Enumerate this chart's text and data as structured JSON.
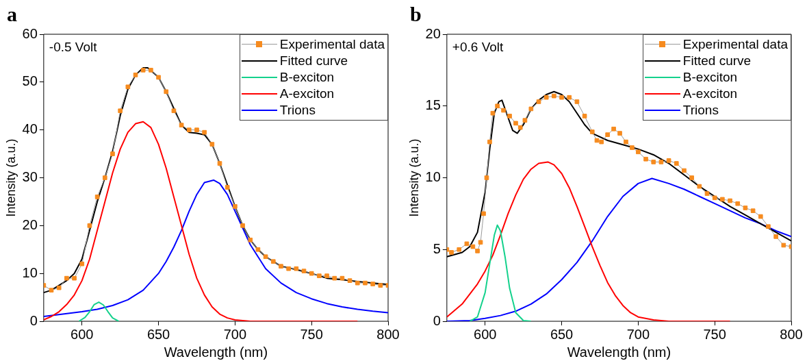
{
  "chart_data": [
    {
      "type": "line",
      "title": "a",
      "xlabel": "Wavelength (nm)",
      "ylabel": "Intensity (a.u.)",
      "annotations": [
        "-0.5 Volt"
      ],
      "xlim": [
        575,
        800
      ],
      "xticks": [
        600,
        650,
        700,
        750,
        800
      ],
      "ylim": [
        0,
        60
      ],
      "yticks": [
        0,
        10,
        20,
        30,
        40,
        50,
        60
      ],
      "grid": false,
      "legend": "top right",
      "series": [
        {
          "name": "Experimental data",
          "color": "#f68b1f",
          "marker": "square",
          "x": [
            575,
            580,
            585,
            590,
            595,
            600,
            605,
            610,
            615,
            620,
            625,
            630,
            635,
            640,
            645,
            650,
            655,
            660,
            665,
            670,
            675,
            680,
            685,
            690,
            695,
            700,
            705,
            710,
            715,
            720,
            725,
            730,
            735,
            740,
            745,
            750,
            755,
            760,
            765,
            770,
            775,
            780,
            785,
            790,
            795,
            800
          ],
          "values": [
            7.5,
            6.5,
            7,
            9,
            9,
            12,
            20,
            26,
            30,
            35,
            44,
            49,
            51.5,
            52.5,
            52.5,
            51,
            48,
            44,
            41,
            40,
            40,
            39.5,
            37,
            33,
            28,
            24,
            20,
            17,
            15,
            13.5,
            12.5,
            11.5,
            11,
            11,
            10.5,
            10,
            9.5,
            9.5,
            9,
            9,
            8.5,
            8,
            8,
            7.8,
            7.5,
            7.5
          ]
        },
        {
          "name": "Fitted curve",
          "color": "#000000",
          "marker": "none",
          "x": [
            575,
            580,
            585,
            590,
            595,
            600,
            605,
            610,
            615,
            620,
            625,
            630,
            635,
            640,
            643,
            650,
            655,
            660,
            665,
            670,
            675,
            680,
            685,
            690,
            695,
            700,
            705,
            710,
            715,
            720,
            725,
            730,
            740,
            750,
            760,
            770,
            780,
            790,
            800
          ],
          "values": [
            6,
            6.5,
            7.5,
            8.5,
            10,
            13,
            19,
            25,
            30,
            35.5,
            43,
            48.5,
            51.5,
            53,
            53,
            51,
            48,
            44.5,
            41,
            39.5,
            39.3,
            39,
            37,
            33,
            28.5,
            24,
            20,
            17,
            15,
            13.5,
            12.5,
            11.5,
            10.8,
            10,
            9,
            8.7,
            8.3,
            8,
            7.7
          ]
        },
        {
          "name": "B-exciton",
          "color": "#14d18c",
          "marker": "none",
          "x": [
            598,
            602,
            605,
            608,
            611,
            614,
            617,
            620,
            624
          ],
          "values": [
            0,
            0.8,
            2,
            3.5,
            4,
            3.4,
            2,
            0.7,
            0
          ]
        },
        {
          "name": "A-exciton",
          "color": "#ff0000",
          "marker": "none",
          "x": [
            575,
            580,
            585,
            590,
            595,
            600,
            605,
            610,
            615,
            620,
            625,
            630,
            635,
            640,
            645,
            650,
            655,
            660,
            665,
            670,
            675,
            680,
            685,
            690,
            695,
            700,
            710,
            780
          ],
          "values": [
            0.3,
            1,
            2,
            3.5,
            5.5,
            8.5,
            13,
            19,
            25,
            31,
            36,
            39.5,
            41.3,
            41.7,
            40.5,
            37,
            32,
            26,
            20,
            14,
            9,
            5.5,
            3,
            1.5,
            0.7,
            0.3,
            0,
            0
          ]
        },
        {
          "name": "Trions",
          "color": "#0000ff",
          "marker": "none",
          "x": [
            575,
            600,
            610,
            620,
            630,
            640,
            650,
            655,
            660,
            665,
            670,
            675,
            680,
            686,
            690,
            695,
            700,
            705,
            710,
            715,
            720,
            730,
            740,
            750,
            760,
            770,
            780,
            790,
            800
          ],
          "values": [
            1,
            2,
            2.5,
            3.3,
            4.5,
            6.5,
            10,
            12.5,
            15.5,
            19,
            23,
            26.5,
            29,
            29.5,
            28.8,
            26.5,
            23,
            19.5,
            16,
            13.5,
            11,
            8,
            6,
            4.7,
            3.7,
            3,
            2.5,
            2.1,
            1.8
          ]
        }
      ]
    },
    {
      "type": "line",
      "title": "b",
      "xlabel": "Wavelength (nm)",
      "ylabel": "Intensity (a.u.)",
      "annotations": [
        "+0.6 Volt"
      ],
      "xlim": [
        575,
        800
      ],
      "xticks": [
        600,
        650,
        700,
        750,
        800
      ],
      "ylim": [
        0,
        20
      ],
      "yticks": [
        0,
        5,
        10,
        15,
        20
      ],
      "grid": false,
      "legend": "top right",
      "series": [
        {
          "name": "Experimental data",
          "color": "#f68b1f",
          "marker": "square",
          "x": [
            575,
            578,
            583,
            588,
            592,
            595,
            597,
            599,
            601,
            603,
            605,
            608,
            612,
            616,
            620,
            623,
            626,
            630,
            635,
            640,
            645,
            650,
            655,
            660,
            665,
            670,
            673,
            676,
            680,
            684,
            688,
            692,
            696,
            700,
            705,
            710,
            715,
            720,
            725,
            730,
            735,
            740,
            745,
            750,
            755,
            760,
            765,
            770,
            775,
            780,
            785,
            790,
            795,
            800
          ],
          "values": [
            5,
            4.8,
            5,
            5.4,
            5.2,
            4.9,
            5.5,
            7.5,
            10,
            12.5,
            14.5,
            15,
            14.7,
            14.3,
            13.8,
            13.5,
            14,
            14.8,
            15.3,
            15.6,
            15.7,
            15.6,
            15.6,
            15.3,
            14.3,
            13.2,
            12.6,
            12.5,
            13,
            13.4,
            13.1,
            12.5,
            12.1,
            11.8,
            11.3,
            11.1,
            11.1,
            11.2,
            11,
            10.5,
            10,
            9.4,
            8.9,
            8.6,
            8.5,
            8.4,
            8.2,
            7.9,
            7.7,
            7.3,
            6.6,
            5.9,
            5.3,
            5.2
          ]
        },
        {
          "name": "Fitted curve",
          "color": "#000000",
          "marker": "none",
          "x": [
            575,
            585,
            590,
            595,
            600,
            603,
            606,
            609,
            611,
            614,
            618,
            621,
            625,
            630,
            635,
            640,
            645,
            650,
            655,
            660,
            665,
            670,
            680,
            690,
            700,
            710,
            720,
            730,
            740,
            750,
            760,
            770,
            780,
            790,
            800
          ],
          "values": [
            4.5,
            4.8,
            5.2,
            6.2,
            9,
            12,
            14.5,
            15.3,
            15.4,
            14.5,
            13.3,
            13.1,
            13.7,
            14.8,
            15.4,
            15.8,
            16,
            15.8,
            15.3,
            14.5,
            13.7,
            13.1,
            12.6,
            12.3,
            12,
            11.6,
            11,
            10.2,
            9.4,
            8.7,
            8,
            7.4,
            6.8,
            6.2,
            5.6
          ]
        },
        {
          "name": "B-exciton",
          "color": "#14d18c",
          "marker": "none",
          "x": [
            590,
            595,
            600,
            603,
            606,
            608,
            610,
            613,
            616,
            620,
            625,
            630
          ],
          "values": [
            0,
            0.3,
            2,
            4,
            6,
            6.7,
            6.3,
            4.5,
            2.3,
            0.6,
            0.05,
            0
          ]
        },
        {
          "name": "A-exciton",
          "color": "#ff0000",
          "marker": "none",
          "x": [
            575,
            585,
            595,
            600,
            605,
            610,
            615,
            620,
            625,
            630,
            635,
            641,
            645,
            650,
            655,
            660,
            665,
            670,
            675,
            680,
            685,
            690,
            695,
            700,
            710,
            720,
            760
          ],
          "values": [
            0.3,
            1.2,
            2.6,
            3.5,
            4.6,
            6,
            7.5,
            8.8,
            9.9,
            10.6,
            11,
            11.1,
            10.9,
            10.3,
            9.3,
            8,
            6.6,
            5.2,
            3.9,
            2.7,
            1.8,
            1.1,
            0.6,
            0.3,
            0.1,
            0,
            0
          ]
        },
        {
          "name": "Trions",
          "color": "#0000ff",
          "marker": "none",
          "x": [
            575,
            590,
            600,
            610,
            620,
            630,
            640,
            650,
            660,
            670,
            680,
            690,
            700,
            709,
            720,
            730,
            740,
            750,
            760,
            770,
            780,
            790,
            800
          ],
          "values": [
            0,
            0.05,
            0.2,
            0.4,
            0.7,
            1.2,
            1.9,
            2.9,
            4.1,
            5.6,
            7.3,
            8.7,
            9.6,
            9.95,
            9.6,
            9.2,
            8.7,
            8.2,
            7.7,
            7.2,
            6.8,
            6.3,
            5.9
          ]
        }
      ]
    }
  ]
}
